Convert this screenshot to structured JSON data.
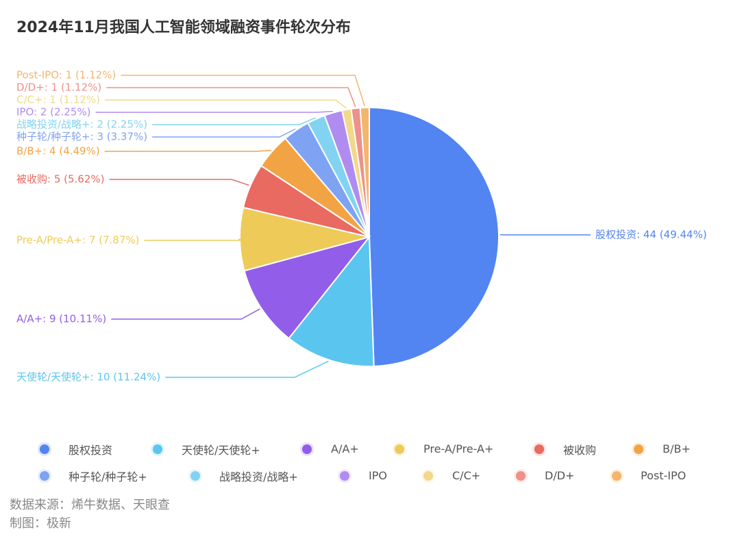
{
  "title": "2024年11月我国人工智能领域融资事件轮次分布",
  "chart_data": {
    "type": "pie",
    "title": "2024年11月我国人工智能领域融资事件轮次分布",
    "slices": [
      {
        "name": "股权投资",
        "value": 44,
        "percent": "49.44%",
        "label": "股权投资: 44 (49.44%)",
        "color": "#5284f2"
      },
      {
        "name": "天使轮/天使轮+",
        "value": 10,
        "percent": "11.24%",
        "label": "天使轮/天使轮+: 10 (11.24%)",
        "color": "#5ac6ef"
      },
      {
        "name": "A/A+",
        "value": 9,
        "percent": "10.11%",
        "label": "A/A+: 9 (10.11%)",
        "color": "#925de9"
      },
      {
        "name": "Pre-A/Pre-A+",
        "value": 7,
        "percent": "7.87%",
        "label": "Pre-A/Pre-A+: 7 (7.87%)",
        "color": "#eecb58"
      },
      {
        "name": "被收购",
        "value": 5,
        "percent": "5.62%",
        "label": "被收购: 5 (5.62%)",
        "color": "#e86a61"
      },
      {
        "name": "B/B+",
        "value": 4,
        "percent": "4.49%",
        "label": "B/B+: 4 (4.49%)",
        "color": "#f2a444"
      },
      {
        "name": "种子轮/种子轮+",
        "value": 3,
        "percent": "3.37%",
        "label": "种子轮/种子轮+: 3 (3.37%)",
        "color": "#7fa3f3"
      },
      {
        "name": "战略投资/战略+",
        "value": 2,
        "percent": "2.25%",
        "label": "战略投资/战略+: 2 (2.25%)",
        "color": "#82d3f2"
      },
      {
        "name": "IPO",
        "value": 2,
        "percent": "2.25%",
        "label": "IPO: 2 (2.25%)",
        "color": "#b18cf0"
      },
      {
        "name": "C/C+",
        "value": 1,
        "percent": "1.12%",
        "label": "C/C+: 1 (1.12%)",
        "color": "#f1d88a"
      },
      {
        "name": "D/D+",
        "value": 1,
        "percent": "1.12%",
        "label": "D/D+: 1 (1.12%)",
        "color": "#ee918a"
      },
      {
        "name": "Post-IPO",
        "value": 1,
        "percent": "1.12%",
        "label": "Post-IPO: 1 (1.12%)",
        "color": "#f4b56c"
      }
    ],
    "legend_placement": "bottom"
  },
  "footer": {
    "source": "数据来源：烯牛数据、天眼查",
    "maker": "制图：极新"
  }
}
